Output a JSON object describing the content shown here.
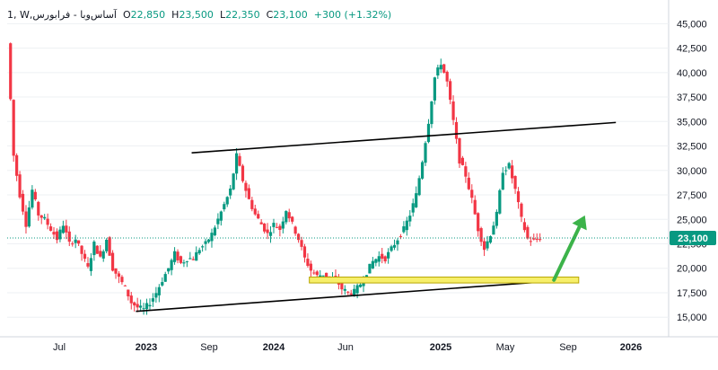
{
  "header": {
    "interval": "1",
    "symbol": "W,آساس‌وبا - فرابورس",
    "o_label": "O",
    "o_value": "22,850",
    "h_label": "H",
    "h_value": "23,500",
    "l_label": "L",
    "l_value": "22,350",
    "c_label": "C",
    "c_value": "23,100",
    "change": "+300 (+1.32%)"
  },
  "colors": {
    "up": "#089981",
    "down": "#f23645",
    "trendline": "#000000",
    "zone_fill": "#f7ef6a",
    "zone_border": "#b8a600",
    "arrow": "#3cb34a",
    "grid": "#eef0f3",
    "axis_text": "#131722",
    "last_price_bg": "#089981"
  },
  "chart_data": {
    "type": "candlestick",
    "y_axis": {
      "ylim": [
        13000,
        46500
      ],
      "ticks": [
        "45,000",
        "42,500",
        "40,000",
        "37,500",
        "35,000",
        "32,500",
        "30,000",
        "27,500",
        "25,000",
        "22,500",
        "20,000",
        "17,500",
        "15,000"
      ],
      "tick_values": [
        45000,
        42500,
        40000,
        37500,
        35000,
        32500,
        30000,
        27500,
        25000,
        22500,
        20000,
        17500,
        15000
      ]
    },
    "x_axis": {
      "ticks": [
        "Jul",
        "2023",
        "Sep",
        "2024",
        "Jun",
        "2025",
        "May",
        "Sep",
        "2026"
      ],
      "bold": [
        "2023",
        "2024",
        "2025",
        "2026"
      ]
    },
    "last_price": "23,100",
    "last_price_value": 23100,
    "anchors": [
      [
        0,
        43000
      ],
      [
        1,
        31500
      ],
      [
        2,
        27500
      ],
      [
        3,
        24500
      ],
      [
        4,
        28000
      ],
      [
        5,
        25500
      ],
      [
        6,
        25000
      ],
      [
        7,
        24000
      ],
      [
        8,
        23000
      ],
      [
        9,
        24500
      ],
      [
        10,
        22500
      ],
      [
        11,
        23000
      ],
      [
        12,
        21500
      ],
      [
        13,
        20000
      ],
      [
        14,
        22500
      ],
      [
        15,
        21000
      ],
      [
        16,
        23000
      ],
      [
        17,
        20000
      ],
      [
        18,
        19000
      ],
      [
        19,
        18000
      ],
      [
        20,
        16500
      ],
      [
        21,
        16000
      ],
      [
        22,
        15800
      ],
      [
        23,
        16500
      ],
      [
        24,
        17500
      ],
      [
        25,
        18800
      ],
      [
        26,
        20000
      ],
      [
        27,
        21500
      ],
      [
        28,
        20500
      ],
      [
        29,
        21000
      ],
      [
        30,
        21000
      ],
      [
        31,
        22000
      ],
      [
        32,
        22500
      ],
      [
        33,
        23500
      ],
      [
        34,
        25000
      ],
      [
        35,
        26500
      ],
      [
        36,
        28000
      ],
      [
        37,
        31500
      ],
      [
        38,
        29000
      ],
      [
        39,
        27000
      ],
      [
        40,
        25500
      ],
      [
        41,
        24500
      ],
      [
        42,
        23500
      ],
      [
        43,
        24500
      ],
      [
        44,
        24000
      ],
      [
        45,
        26000
      ],
      [
        46,
        24500
      ],
      [
        47,
        23000
      ],
      [
        48,
        21000
      ],
      [
        49,
        19800
      ],
      [
        50,
        19200
      ],
      [
        51,
        19400
      ],
      [
        52,
        19000
      ],
      [
        53,
        18900
      ],
      [
        54,
        17900
      ],
      [
        55,
        17500
      ],
      [
        56,
        17600
      ],
      [
        57,
        18400
      ],
      [
        58,
        19600
      ],
      [
        59,
        20700
      ],
      [
        60,
        21200
      ],
      [
        61,
        21000
      ],
      [
        62,
        22000
      ],
      [
        63,
        23000
      ],
      [
        64,
        24000
      ],
      [
        65,
        25500
      ],
      [
        66,
        27500
      ],
      [
        67,
        31000
      ],
      [
        68,
        35000
      ],
      [
        69,
        39500
      ],
      [
        70,
        41000
      ],
      [
        71,
        39000
      ],
      [
        72,
        35000
      ],
      [
        73,
        31000
      ],
      [
        74,
        29500
      ],
      [
        75,
        27000
      ],
      [
        76,
        24000
      ],
      [
        77,
        22000
      ],
      [
        78,
        23500
      ],
      [
        79,
        25500
      ],
      [
        80,
        30000
      ],
      [
        81,
        30500
      ],
      [
        82,
        28000
      ],
      [
        83,
        25000
      ],
      [
        84,
        23000
      ],
      [
        85,
        22800
      ],
      [
        86,
        23100
      ]
    ],
    "annotations": [
      {
        "type": "trendline",
        "from": [
          29.5,
          31800
        ],
        "to": [
          98,
          34900
        ]
      },
      {
        "type": "trendline",
        "from": [
          20.5,
          15600
        ],
        "to": [
          88,
          18700
        ]
      },
      {
        "type": "zone",
        "x_range": [
          48.5,
          92
        ],
        "y_range": [
          18500,
          19100
        ]
      },
      {
        "type": "arrow",
        "from": [
          88,
          18800
        ],
        "to": [
          93,
          25400
        ]
      }
    ]
  }
}
